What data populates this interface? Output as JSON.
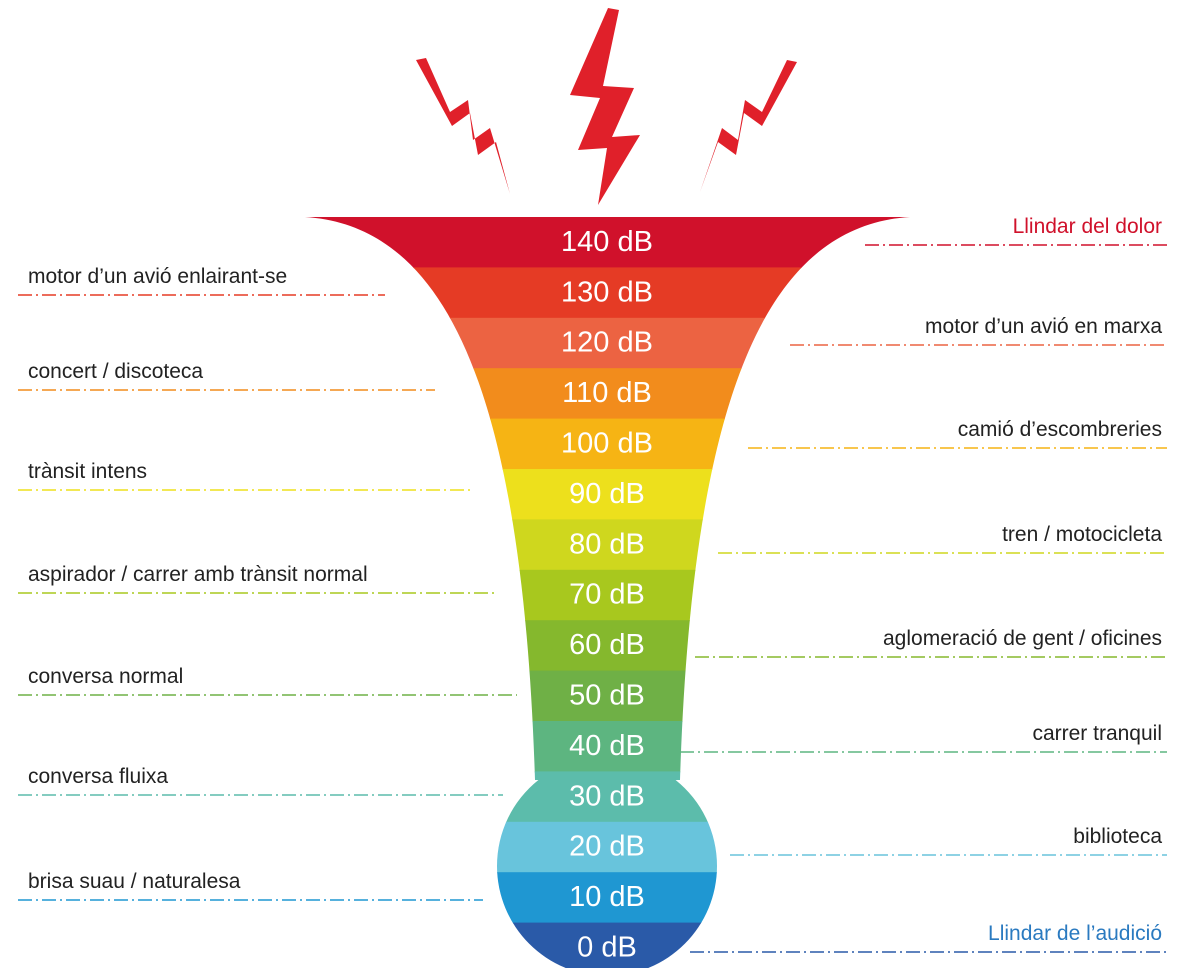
{
  "levels": [
    {
      "label": "140 dB",
      "color": "#d0112b"
    },
    {
      "label": "130 dB",
      "color": "#e53b25"
    },
    {
      "label": "120 dB",
      "color": "#ec6342"
    },
    {
      "label": "110 dB",
      "color": "#f28c1c"
    },
    {
      "label": "100 dB",
      "color": "#f6b414"
    },
    {
      "label": "90 dB",
      "color": "#ede01c"
    },
    {
      "label": "80 dB",
      "color": "#cfd71e"
    },
    {
      "label": "70 dB",
      "color": "#a8c81e"
    },
    {
      "label": "60 dB",
      "color": "#85b82d"
    },
    {
      "label": "50 dB",
      "color": "#6fb046"
    },
    {
      "label": "40 dB",
      "color": "#5db580"
    },
    {
      "label": "30 dB",
      "color": "#5cbcab"
    },
    {
      "label": "20 dB",
      "color": "#68c4dc"
    },
    {
      "label": "10 dB",
      "color": "#1f97d2"
    },
    {
      "label": "0 dB",
      "color": "#2a5aa8"
    }
  ],
  "left": [
    "motor d’un avió enlairant-se",
    "concert / discoteca",
    "trànsit intens",
    "aspirador / carrer amb trànsit normal",
    "conversa normal",
    "conversa fluixa",
    "brisa suau / naturalesa"
  ],
  "right": [
    "Llindar del dolor",
    "motor d’un avió en marxa",
    "camió d’escombreries",
    "tren / motocicleta",
    "aglomeració de gent / oficines",
    "carrer tranquil",
    "biblioteca",
    "Llindar de l’audició"
  ]
}
